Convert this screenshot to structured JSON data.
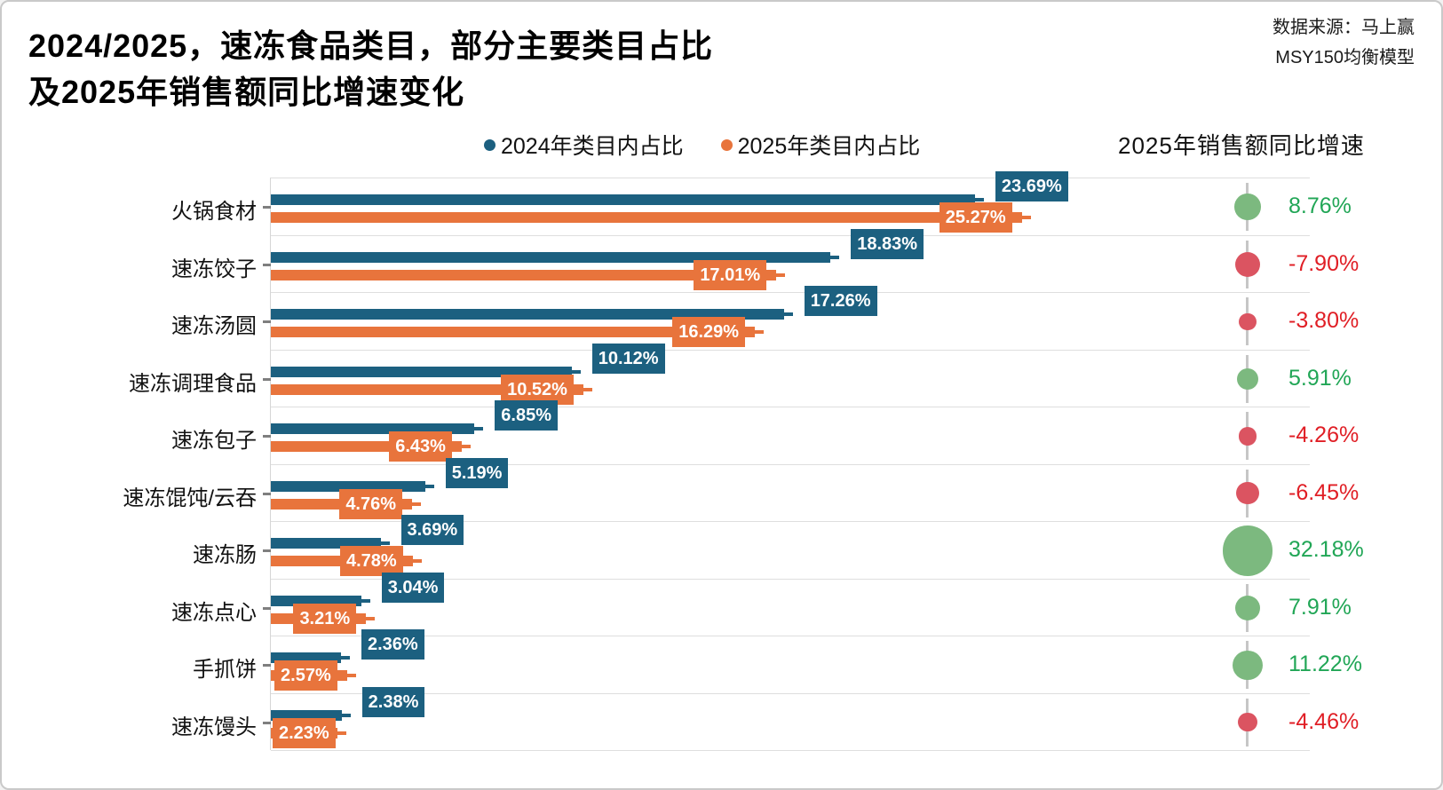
{
  "header": {
    "title_line1": "2024/2025，速冻食品类目，部分主要类目占比",
    "title_line2": "及2025年销售额同比增速变化",
    "source_line1": "数据来源：马上赢",
    "source_line2": "MSY150均衡模型"
  },
  "legend": {
    "series_2024_label": "2024年类目内占比",
    "series_2025_label": "2025年类目内占比",
    "growth_header": "2025年销售额同比增速"
  },
  "colors": {
    "bar_2024": "#1c6080",
    "bar_2025": "#e8743c",
    "bubble_positive": "#7cb97f",
    "bubble_negative": "#db5461",
    "text_positive": "#21a656",
    "text_negative": "#e01e25",
    "gridline": "#dedede"
  },
  "chart_data": {
    "type": "bar",
    "orientation": "horizontal",
    "title": "2024/2025，速冻食品类目，部分主要类目占比及2025年销售额同比增速变化",
    "xlabel": "",
    "ylabel": "",
    "xlim": [
      0,
      35
    ],
    "value_unit": "%",
    "grid": "row-separators",
    "legend_position": "top",
    "categories": [
      "火锅食材",
      "速冻饺子",
      "速冻汤圆",
      "速冻调理食品",
      "速冻包子",
      "速冻馄饨/云吞",
      "速冻肠",
      "速冻点心",
      "手抓饼",
      "速冻馒头"
    ],
    "series": [
      {
        "name": "2024年类目内占比",
        "color": "#1c6080",
        "values": [
          23.69,
          18.83,
          17.26,
          10.12,
          6.85,
          5.19,
          3.69,
          3.04,
          2.36,
          2.38
        ]
      },
      {
        "name": "2025年类目内占比",
        "color": "#e8743c",
        "values": [
          25.27,
          17.01,
          16.29,
          10.52,
          6.43,
          4.76,
          4.78,
          3.21,
          2.57,
          2.23
        ]
      }
    ],
    "growth_series": {
      "name": "2025年销售额同比增速",
      "values": [
        8.76,
        -7.9,
        -3.8,
        5.91,
        -4.26,
        -6.45,
        32.18,
        7.91,
        11.22,
        -4.46
      ]
    },
    "rows": [
      {
        "label": "火锅食材",
        "v2024": "23.69%",
        "v2025": "25.27%",
        "growth": "8.76%"
      },
      {
        "label": "速冻饺子",
        "v2024": "18.83%",
        "v2025": "17.01%",
        "growth": "-7.90%"
      },
      {
        "label": "速冻汤圆",
        "v2024": "17.26%",
        "v2025": "16.29%",
        "growth": "-3.80%"
      },
      {
        "label": "速冻调理食品",
        "v2024": "10.12%",
        "v2025": "10.52%",
        "growth": "5.91%"
      },
      {
        "label": "速冻包子",
        "v2024": "6.85%",
        "v2025": "6.43%",
        "growth": "-4.26%"
      },
      {
        "label": "速冻馄饨/云吞",
        "v2024": "5.19%",
        "v2025": "4.76%",
        "growth": "-6.45%"
      },
      {
        "label": "速冻肠",
        "v2024": "3.69%",
        "v2025": "4.78%",
        "growth": "32.18%"
      },
      {
        "label": "速冻点心",
        "v2024": "3.04%",
        "v2025": "3.21%",
        "growth": "7.91%"
      },
      {
        "label": "手抓饼",
        "v2024": "2.36%",
        "v2025": "2.57%",
        "growth": "11.22%"
      },
      {
        "label": "速冻馒头",
        "v2024": "2.38%",
        "v2025": "2.23%",
        "growth": "-4.46%"
      }
    ]
  }
}
